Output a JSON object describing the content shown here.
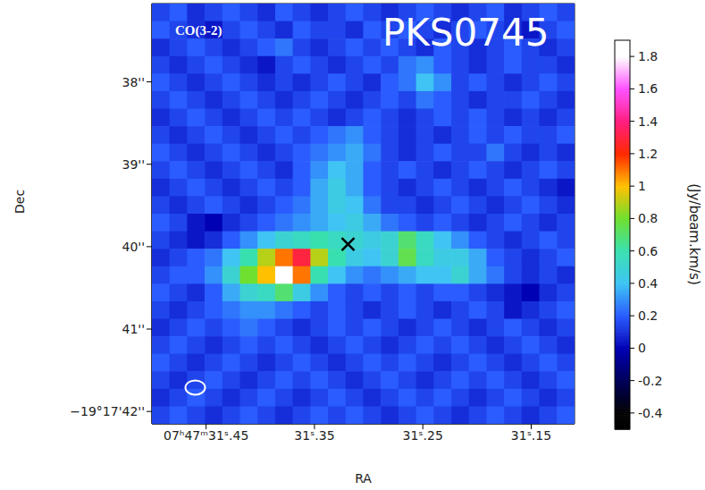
{
  "chart_data": {
    "type": "heatmap",
    "title": "PKS0745",
    "subtitle": "CO(3-2)",
    "x_label": "RA",
    "y_label": "Dec",
    "xlim": [
      31.5,
      31.11
    ],
    "xticks": [
      {
        "value": 31.45,
        "label": "07ʰ47ᵐ31ˢ.45"
      },
      {
        "value": 31.35,
        "label": "31ˢ.35"
      },
      {
        "value": 31.25,
        "label": "31ˢ.25"
      },
      {
        "value": 31.15,
        "label": "31ˢ.15"
      }
    ],
    "ylim": [
      42.15,
      37.05
    ],
    "yticks": [
      {
        "value": 38,
        "label": "38''"
      },
      {
        "value": 39,
        "label": "39''"
      },
      {
        "value": 40,
        "label": "40''"
      },
      {
        "value": 41,
        "label": "41''"
      },
      {
        "value": 42,
        "label": "−19°17'42''"
      }
    ],
    "x": [
      31.4919,
      31.4756,
      31.4594,
      31.4431,
      31.4269,
      31.4106,
      31.3944,
      31.3781,
      31.3619,
      31.3456,
      31.3294,
      31.3131,
      31.2969,
      31.2806,
      31.2644,
      31.2481,
      31.2319,
      31.2156,
      31.1994,
      31.1831,
      31.1669,
      31.1506,
      31.1344,
      31.1181
    ],
    "y": [
      37.1563,
      37.3688,
      37.5813,
      37.7938,
      38.0063,
      38.2188,
      38.4313,
      38.6438,
      38.8563,
      39.0688,
      39.2813,
      39.4938,
      39.7063,
      39.9188,
      40.1313,
      40.3438,
      40.5563,
      40.7688,
      40.9813,
      41.1938,
      41.4063,
      41.6188,
      41.8313,
      42.0438
    ],
    "cells": [
      [
        0.15,
        0.2,
        0.1,
        0.15,
        0.2,
        0.15,
        0.1,
        0.2,
        0.15,
        0.1,
        0.15,
        0.2,
        0.15,
        0.1,
        0.15,
        0.2,
        0.15,
        0.1,
        0.15,
        0.2,
        0.1,
        0.15,
        0.2,
        0.15
      ],
      [
        0.2,
        0.15,
        0.1,
        0.05,
        0.15,
        0.2,
        0.15,
        0.1,
        0.2,
        0.15,
        0.15,
        0.1,
        0.2,
        0.15,
        0.2,
        0.15,
        0.1,
        0.15,
        0.2,
        0.15,
        0.1,
        0.05,
        0.15,
        0.2
      ],
      [
        0.1,
        0.15,
        0.2,
        0.15,
        0.1,
        0.15,
        0.2,
        0.25,
        0.15,
        0.1,
        0.15,
        0.2,
        0.15,
        0.2,
        0.15,
        0.1,
        0.2,
        0.15,
        0.1,
        0.15,
        0.2,
        0.15,
        0.1,
        0.15
      ],
      [
        0.15,
        0.1,
        0.15,
        0.2,
        0.15,
        0.1,
        0.05,
        0.15,
        0.2,
        0.15,
        0.1,
        0.15,
        0.2,
        0.15,
        0.25,
        0.3,
        0.2,
        0.15,
        0.1,
        0.15,
        0.2,
        0.15,
        0.15,
        0.1
      ],
      [
        0.2,
        0.15,
        0.1,
        0.15,
        0.2,
        0.15,
        0.1,
        0.15,
        0.1,
        0.15,
        0.2,
        0.15,
        0.1,
        0.2,
        0.25,
        0.4,
        0.3,
        0.15,
        0.2,
        0.15,
        0.1,
        0.15,
        0.2,
        0.15
      ],
      [
        0.15,
        0.2,
        0.15,
        0.1,
        0.15,
        0.2,
        0.15,
        0.1,
        0.15,
        0.2,
        0.15,
        0.1,
        0.15,
        0.2,
        0.15,
        0.25,
        0.2,
        0.15,
        0.1,
        0.15,
        0.15,
        0.2,
        0.15,
        0.1
      ],
      [
        0.1,
        0.15,
        0.2,
        0.15,
        0.1,
        0.15,
        0.2,
        0.15,
        0.2,
        0.15,
        0.1,
        0.15,
        0.2,
        0.15,
        0.1,
        0.15,
        0.2,
        0.15,
        0.2,
        0.15,
        0.1,
        0.15,
        0.1,
        0.15
      ],
      [
        0.15,
        0.1,
        0.15,
        0.2,
        0.15,
        0.1,
        0.15,
        0.2,
        0.15,
        0.2,
        0.25,
        0.3,
        0.2,
        0.15,
        0.1,
        0.15,
        0.1,
        0.15,
        0.2,
        0.15,
        0.2,
        0.15,
        0.15,
        0.2
      ],
      [
        0.2,
        0.15,
        0.1,
        0.15,
        0.2,
        0.15,
        0.1,
        0.15,
        0.2,
        0.25,
        0.3,
        0.35,
        0.25,
        0.15,
        0.1,
        0.15,
        0.2,
        0.15,
        0.15,
        0.25,
        0.15,
        0.1,
        0.15,
        0.1
      ],
      [
        0.15,
        0.2,
        0.15,
        0.1,
        0.15,
        0.2,
        0.15,
        0.1,
        0.2,
        0.3,
        0.4,
        0.35,
        0.2,
        0.15,
        0.2,
        0.15,
        0.1,
        0.15,
        0.2,
        0.15,
        0.1,
        0.15,
        0.2,
        0.15
      ],
      [
        0.1,
        0.15,
        0.2,
        0.15,
        0.1,
        0.15,
        0.2,
        0.15,
        0.2,
        0.35,
        0.45,
        0.35,
        0.2,
        0.15,
        0.1,
        0.15,
        0.2,
        0.15,
        0.1,
        0.15,
        0.2,
        0.15,
        0.1,
        0.05
      ],
      [
        0.15,
        0.1,
        0.15,
        0.2,
        0.15,
        0.1,
        0.15,
        0.2,
        0.25,
        0.35,
        0.45,
        0.4,
        0.25,
        0.15,
        0.15,
        0.1,
        0.15,
        0.2,
        0.15,
        0.1,
        0.15,
        0.2,
        0.15,
        0.1
      ],
      [
        0.2,
        0.15,
        0.05,
        0.0,
        0.1,
        0.15,
        0.2,
        0.25,
        0.3,
        0.35,
        0.4,
        0.45,
        0.35,
        0.25,
        0.2,
        0.15,
        0.2,
        0.15,
        0.1,
        0.15,
        0.2,
        0.15,
        0.1,
        0.15
      ],
      [
        0.15,
        0.1,
        0.05,
        0.1,
        0.2,
        0.3,
        0.4,
        0.5,
        0.55,
        0.6,
        0.55,
        0.5,
        0.45,
        0.5,
        0.7,
        0.55,
        0.4,
        0.3,
        0.2,
        0.15,
        0.1,
        0.15,
        0.2,
        0.15
      ],
      [
        0.1,
        0.15,
        0.2,
        0.25,
        0.4,
        0.6,
        0.9,
        1.1,
        1.3,
        0.9,
        0.6,
        0.45,
        0.4,
        0.5,
        0.75,
        0.55,
        0.45,
        0.45,
        0.35,
        0.2,
        0.15,
        0.1,
        0.15,
        0.2
      ],
      [
        0.15,
        0.2,
        0.2,
        0.3,
        0.5,
        0.8,
        1.0,
        1.8,
        1.1,
        0.6,
        0.4,
        0.3,
        0.25,
        0.3,
        0.35,
        0.4,
        0.4,
        0.5,
        0.35,
        0.25,
        0.15,
        0.1,
        0.15,
        0.1
      ],
      [
        0.2,
        0.15,
        0.1,
        0.2,
        0.35,
        0.5,
        0.55,
        0.7,
        0.45,
        0.3,
        0.2,
        0.15,
        0.2,
        0.15,
        0.2,
        0.15,
        0.2,
        0.2,
        0.15,
        0.1,
        0.05,
        0.0,
        0.1,
        0.15
      ],
      [
        0.15,
        0.1,
        0.15,
        0.2,
        0.25,
        0.3,
        0.3,
        0.25,
        0.2,
        0.15,
        0.2,
        0.15,
        0.1,
        0.15,
        0.2,
        0.15,
        0.1,
        0.15,
        0.2,
        0.15,
        0.05,
        0.1,
        0.15,
        0.2
      ],
      [
        0.1,
        0.15,
        0.2,
        0.15,
        0.2,
        0.25,
        0.2,
        0.15,
        0.1,
        0.15,
        0.2,
        0.15,
        0.2,
        0.15,
        0.1,
        0.15,
        0.2,
        0.15,
        0.1,
        0.15,
        0.2,
        0.15,
        0.1,
        0.15
      ],
      [
        0.15,
        0.2,
        0.15,
        0.1,
        0.15,
        0.2,
        0.15,
        0.2,
        0.15,
        0.1,
        0.15,
        0.2,
        0.15,
        0.1,
        0.15,
        0.2,
        0.15,
        0.2,
        0.15,
        0.1,
        0.15,
        0.2,
        0.15,
        0.1
      ],
      [
        0.2,
        0.15,
        0.1,
        0.15,
        0.2,
        0.15,
        0.1,
        0.15,
        0.2,
        0.15,
        0.1,
        0.15,
        0.2,
        0.15,
        0.2,
        0.15,
        0.1,
        0.15,
        0.2,
        0.15,
        0.1,
        0.15,
        0.2,
        0.15
      ],
      [
        0.15,
        0.1,
        0.15,
        0.2,
        0.15,
        0.1,
        0.15,
        0.2,
        0.15,
        0.2,
        0.15,
        0.1,
        0.15,
        0.2,
        0.15,
        0.1,
        0.15,
        0.2,
        0.15,
        0.2,
        0.15,
        0.1,
        0.15,
        0.2
      ],
      [
        0.1,
        0.15,
        0.2,
        0.15,
        0.1,
        0.15,
        0.2,
        0.15,
        0.1,
        0.15,
        0.2,
        0.15,
        0.1,
        0.15,
        0.2,
        0.15,
        0.2,
        0.15,
        0.1,
        0.15,
        0.2,
        0.15,
        0.1,
        0.15
      ],
      [
        0.15,
        0.2,
        0.15,
        0.1,
        0.15,
        0.2,
        0.15,
        0.1,
        0.15,
        0.2,
        0.15,
        0.2,
        0.15,
        0.1,
        0.15,
        0.2,
        0.15,
        0.1,
        0.15,
        0.2,
        0.15,
        0.1,
        0.15,
        0.2
      ]
    ],
    "markers": [
      {
        "x": 31.319,
        "y": 39.97,
        "marker": "x"
      }
    ],
    "beam": {
      "x": 31.46,
      "y": 41.71
    },
    "colorbar": {
      "label": "(Jy/beam.km/s)",
      "range": [
        -0.5,
        1.9
      ],
      "ticks": [
        -0.4,
        -0.2,
        0,
        0.2,
        0.4,
        0.6,
        0.8,
        1,
        1.2,
        1.4,
        1.6,
        1.8
      ]
    }
  }
}
